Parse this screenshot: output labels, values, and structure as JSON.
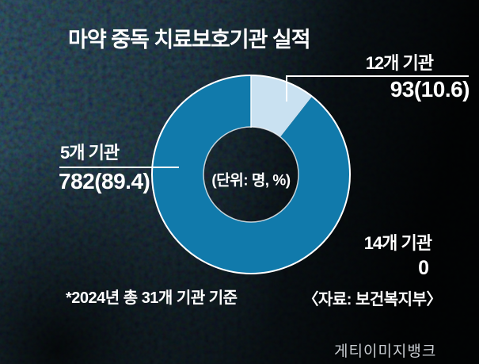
{
  "page": {
    "background_color": "#000000",
    "watermark": "게티이미지뱅크"
  },
  "chart_data": {
    "type": "pie",
    "variant": "donut",
    "title": "마약 중독 치료보호기관 실적",
    "unit_note": "(단위: 명, %)",
    "start_angle_deg": 0,
    "direction": "clockwise",
    "footnote": "*2024년 총 31개 기관 기준",
    "source": "〈자료: 보건복지부〉",
    "slices": [
      {
        "label": "12개 기관",
        "value": 93,
        "percent": 10.6,
        "value_display": "93(10.6)",
        "color": "#c9e1f1"
      },
      {
        "label": "5개 기관",
        "value": 782,
        "percent": 89.4,
        "value_display": "782(89.4)",
        "color": "#117aab"
      },
      {
        "label": "14개 기관",
        "value": 0,
        "percent": 0,
        "value_display": "0",
        "color": null
      }
    ]
  },
  "colors": {
    "accent_primary": "#117aab",
    "accent_secondary": "#c9e1f1",
    "stroke": "#ffffff",
    "text": "#ffffff",
    "watermark": "#c8ccd1"
  }
}
